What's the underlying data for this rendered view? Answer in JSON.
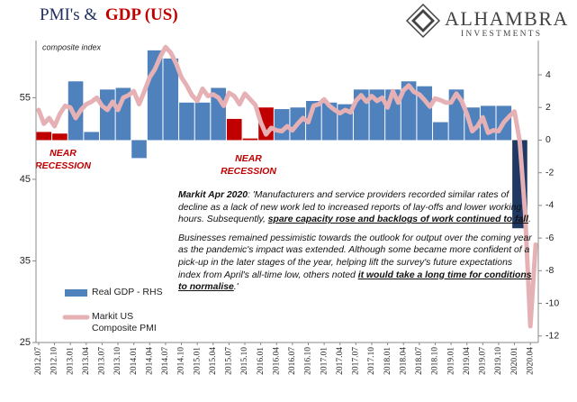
{
  "chart_data": {
    "type": "bar_line",
    "title": [
      "PMI's &",
      "GDP (US)"
    ],
    "brand": [
      "ALHAMBRA",
      "INVESTMENTS"
    ],
    "notes": [
      "composite index"
    ],
    "recession_labels": [
      [
        "NEAR",
        "RECESSION"
      ],
      [
        "NEAR",
        "RECESSION"
      ]
    ],
    "quote": {
      "p1": [
        "Markit Apr 2020",
        ": 'Manufacturers and service providers recorded similar rates of decline as a lack of new work led to increased reports of lay-offs and lower working hours. Subsequently, ",
        "spare capacity rose and backlogs of work continued to fall",
        "."
      ],
      "p2": [
        "Businesses remained pessimistic towards the outlook for output over the coming year as the pandemic's impact was extended. Although some became more confident of a pick-up in the later stages of the year, helping lift the survey's future expectations index from April's all-time low, others noted ",
        "it would take a long time for conditions to normalise",
        ".'"
      ]
    },
    "categories": [
      "2012.07",
      null,
      null,
      "2012.10",
      null,
      null,
      "2013.01",
      null,
      null,
      "2013.04",
      null,
      null,
      "2013.07",
      null,
      null,
      "2013.10",
      null,
      null,
      "2014.01",
      null,
      null,
      "2014.04",
      null,
      null,
      "2014.07",
      null,
      null,
      "2014.10",
      null,
      null,
      "2015.01",
      null,
      null,
      "2015.04",
      null,
      null,
      "2015.07",
      null,
      null,
      "2015.10",
      null,
      null,
      "2016.01",
      null,
      null,
      "2016.04",
      null,
      null,
      "2016.07",
      null,
      null,
      "2016.10",
      null,
      null,
      "2017.01",
      null,
      null,
      "2017.04",
      null,
      null,
      "2017.07",
      null,
      null,
      "2017.10",
      null,
      null,
      "2018.01",
      null,
      null,
      "2018.04",
      null,
      null,
      "2018.07",
      null,
      null,
      "2018.10",
      null,
      null,
      "2019.01",
      null,
      null,
      "2019.04",
      null,
      null,
      "2019.07",
      null,
      null,
      "2019.10",
      null,
      null,
      "2020.01",
      null,
      null,
      "2020.04",
      null
    ],
    "series": [
      {
        "name": "Real GDP - RHS",
        "kind": "bar",
        "axis": "y2",
        "color": "#4f81bd",
        "values": [
          0.5,
          null,
          null,
          0.4,
          null,
          null,
          3.6,
          null,
          null,
          0.5,
          null,
          null,
          3.1,
          null,
          null,
          3.2,
          null,
          null,
          -1.1,
          null,
          null,
          5.5,
          null,
          null,
          5.0,
          null,
          null,
          2.3,
          null,
          null,
          2.3,
          null,
          null,
          3.2,
          null,
          null,
          1.3,
          null,
          null,
          0.1,
          null,
          null,
          2.0,
          null,
          null,
          1.9,
          null,
          null,
          2.0,
          null,
          null,
          2.4,
          null,
          null,
          2.3,
          null,
          null,
          2.2,
          null,
          null,
          3.1,
          null,
          null,
          3.1,
          null,
          null,
          3.1,
          null,
          null,
          3.6,
          null,
          null,
          3.3,
          null,
          null,
          1.1,
          null,
          null,
          3.1,
          null,
          null,
          2.0,
          null,
          null,
          2.1,
          null,
          null,
          2.1,
          null,
          null,
          -5.4,
          null,
          null,
          null,
          null
        ],
        "colors": [
          "#c00000",
          null,
          null,
          "#c00000",
          null,
          null,
          "#4f81bd",
          null,
          null,
          "#4f81bd",
          null,
          null,
          "#4f81bd",
          null,
          null,
          "#4f81bd",
          null,
          null,
          "#4f81bd",
          null,
          null,
          "#4f81bd",
          null,
          null,
          "#4f81bd",
          null,
          null,
          "#4f81bd",
          null,
          null,
          "#4f81bd",
          null,
          null,
          "#4f81bd",
          null,
          null,
          "#c00000",
          null,
          null,
          "#c00000",
          null,
          null,
          "#c00000",
          null,
          null,
          "#4f81bd",
          null,
          null,
          "#4f81bd",
          null,
          null,
          "#4f81bd",
          null,
          null,
          "#4f81bd",
          null,
          null,
          "#4f81bd",
          null,
          null,
          "#4f81bd",
          null,
          null,
          "#4f81bd",
          null,
          null,
          "#4f81bd",
          null,
          null,
          "#4f81bd",
          null,
          null,
          "#4f81bd",
          null,
          null,
          "#4f81bd",
          null,
          null,
          "#4f81bd",
          null,
          null,
          "#4f81bd",
          null,
          null,
          "#4f81bd",
          null,
          null,
          "#4f81bd",
          null,
          null,
          "#1f3864",
          null,
          null,
          null,
          null
        ]
      },
      {
        "name": "Markit US Composite PMI",
        "kind": "line",
        "axis": "y",
        "color": "#e6b1b5",
        "values": [
          53.5,
          51.8,
          52.5,
          51.5,
          53.0,
          54.0,
          53.8,
          52.5,
          53.5,
          54.2,
          54.5,
          55.0,
          54.0,
          53.5,
          54.5,
          53.5,
          55.0,
          55.3,
          55.8,
          54.2,
          55.8,
          57.5,
          58.5,
          60.0,
          61.2,
          60.5,
          59.2,
          57.5,
          56.5,
          55.3,
          54.6,
          56.1,
          55.2,
          55.4,
          55.0,
          54.0,
          55.6,
          55.2,
          54.2,
          55.5,
          54.8,
          54.1,
          52.0,
          50.5,
          51.3,
          51.0,
          50.9,
          51.5,
          51.0,
          51.8,
          52.5,
          52.0,
          54.0,
          54.2,
          54.8,
          54.0,
          53.5,
          53.1,
          53.5,
          53.2,
          54.6,
          55.3,
          54.5,
          55.2,
          54.6,
          55.0,
          53.8,
          55.8,
          54.4,
          55.9,
          56.5,
          55.7,
          55.4,
          54.7,
          53.9,
          54.9,
          54.7,
          54.4,
          54.4,
          55.5,
          54.6,
          53.0,
          50.9,
          51.5,
          52.6,
          50.7,
          51.0,
          50.9,
          52.0,
          52.7,
          53.3,
          49.6,
          40.9,
          27.0,
          37.0
        ]
      }
    ],
    "ylim": [
      25,
      62
    ],
    "yticks": [
      25,
      35,
      45,
      55
    ],
    "y2lim": [
      -12.4,
      6.1
    ],
    "y2ticks": [
      -12,
      -10,
      -8,
      -6,
      -4,
      -2,
      0,
      2,
      4
    ],
    "title_colors": [
      "#1f2d5c",
      "#c00000"
    ],
    "recession_color": "#c00000"
  }
}
